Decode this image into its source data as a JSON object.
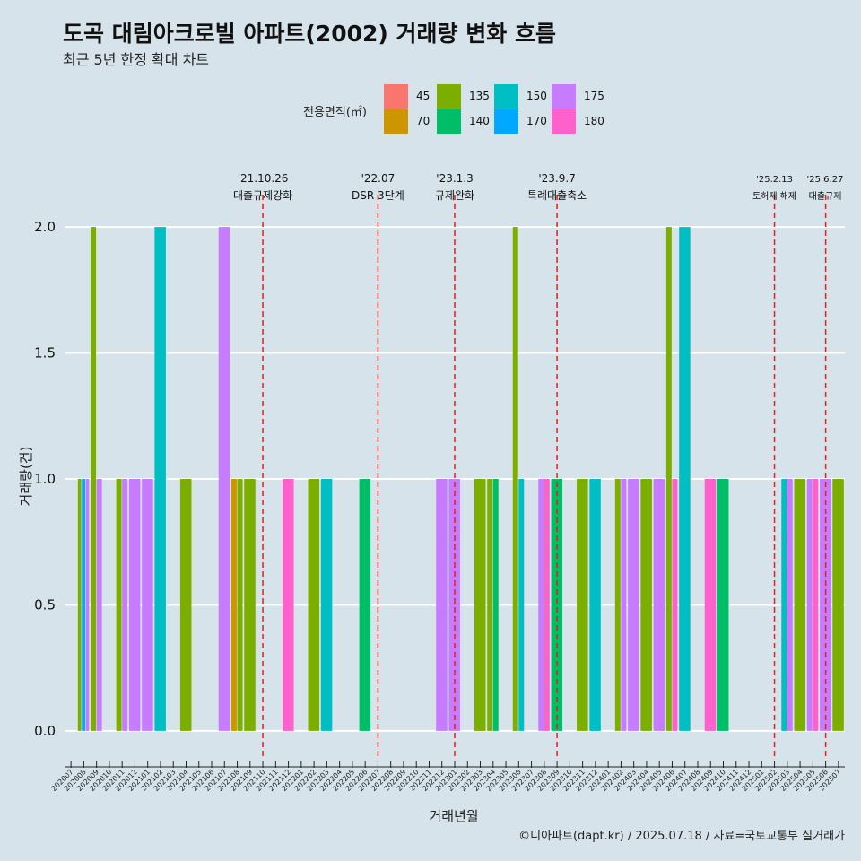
{
  "header": {
    "title": "도곡 대림아크로빌 아파트(2002) 거래량 변화 흐름",
    "subtitle": "최근 5년 한정 확대 차트"
  },
  "legend": {
    "title": "전용면적(㎡)",
    "items": [
      {
        "label": "45",
        "color": "#F8766D"
      },
      {
        "label": "70",
        "color": "#CD9600"
      },
      {
        "label": "135",
        "color": "#7CAE00"
      },
      {
        "label": "140",
        "color": "#00BE67"
      },
      {
        "label": "150",
        "color": "#00BFC4"
      },
      {
        "label": "170",
        "color": "#00A9FF"
      },
      {
        "label": "175",
        "color": "#C77CFF"
      },
      {
        "label": "180",
        "color": "#FF61CC"
      }
    ]
  },
  "caption": "©디아파트(dapt.kr) / 2025.07.18 / 자료=국토교통부 실거래가",
  "chart_data": {
    "type": "bar",
    "xlabel": "거래년월",
    "ylabel": "거래량(건)",
    "ylim": [
      -0.1,
      2.1
    ],
    "yticks": [
      "0.0",
      "0.5",
      "1.0",
      "1.5",
      "2.0"
    ],
    "grid": true,
    "categories": [
      "202007",
      "202008",
      "202009",
      "202010",
      "202011",
      "202012",
      "202101",
      "202102",
      "202103",
      "202104",
      "202105",
      "202106",
      "202107",
      "202108",
      "202109",
      "202110",
      "202111",
      "202112",
      "202201",
      "202202",
      "202203",
      "202204",
      "202205",
      "202206",
      "202207",
      "202208",
      "202209",
      "202210",
      "202211",
      "202212",
      "202301",
      "202302",
      "202303",
      "202304",
      "202305",
      "202306",
      "202307",
      "202308",
      "202309",
      "202310",
      "202311",
      "202312",
      "202401",
      "202402",
      "202403",
      "202404",
      "202405",
      "202406",
      "202407",
      "202408",
      "202409",
      "202410",
      "202411",
      "202412",
      "202501",
      "202502",
      "202503",
      "202504",
      "202505",
      "202506",
      "202507"
    ],
    "bars": [
      {
        "month": "202008",
        "area": "135",
        "count": 1
      },
      {
        "month": "202008",
        "area": "170",
        "count": 1
      },
      {
        "month": "202008",
        "area": "175",
        "count": 1
      },
      {
        "month": "202009",
        "area": "135",
        "count": 2
      },
      {
        "month": "202009",
        "area": "175",
        "count": 1
      },
      {
        "month": "202011",
        "area": "135",
        "count": 1
      },
      {
        "month": "202011",
        "area": "175",
        "count": 1
      },
      {
        "month": "202012",
        "area": "175",
        "count": 1
      },
      {
        "month": "202101",
        "area": "175",
        "count": 1
      },
      {
        "month": "202102",
        "area": "150",
        "count": 2
      },
      {
        "month": "202104",
        "area": "135",
        "count": 1
      },
      {
        "month": "202107",
        "area": "175",
        "count": 2
      },
      {
        "month": "202108",
        "area": "70",
        "count": 1
      },
      {
        "month": "202108",
        "area": "135",
        "count": 1
      },
      {
        "month": "202109",
        "area": "135",
        "count": 1
      },
      {
        "month": "202112",
        "area": "180",
        "count": 1
      },
      {
        "month": "202202",
        "area": "135",
        "count": 1
      },
      {
        "month": "202203",
        "area": "150",
        "count": 1
      },
      {
        "month": "202206",
        "area": "140",
        "count": 1
      },
      {
        "month": "202212",
        "area": "175",
        "count": 1
      },
      {
        "month": "202301",
        "area": "175",
        "count": 1
      },
      {
        "month": "202303",
        "area": "135",
        "count": 1
      },
      {
        "month": "202304",
        "area": "135",
        "count": 1
      },
      {
        "month": "202304",
        "area": "140",
        "count": 1
      },
      {
        "month": "202306",
        "area": "135",
        "count": 2
      },
      {
        "month": "202306",
        "area": "150",
        "count": 1
      },
      {
        "month": "202308",
        "area": "175",
        "count": 1
      },
      {
        "month": "202308",
        "area": "180",
        "count": 1
      },
      {
        "month": "202309",
        "area": "140",
        "count": 1
      },
      {
        "month": "202311",
        "area": "135",
        "count": 1
      },
      {
        "month": "202312",
        "area": "150",
        "count": 1
      },
      {
        "month": "202402",
        "area": "135",
        "count": 1
      },
      {
        "month": "202402",
        "area": "175",
        "count": 1
      },
      {
        "month": "202403",
        "area": "175",
        "count": 1
      },
      {
        "month": "202404",
        "area": "135",
        "count": 1
      },
      {
        "month": "202405",
        "area": "175",
        "count": 1
      },
      {
        "month": "202406",
        "area": "135",
        "count": 2
      },
      {
        "month": "202406",
        "area": "180",
        "count": 1
      },
      {
        "month": "202407",
        "area": "150",
        "count": 2
      },
      {
        "month": "202409",
        "area": "180",
        "count": 1
      },
      {
        "month": "202410",
        "area": "140",
        "count": 1
      },
      {
        "month": "202503",
        "area": "150",
        "count": 1
      },
      {
        "month": "202503",
        "area": "175",
        "count": 1
      },
      {
        "month": "202504",
        "area": "135",
        "count": 1
      },
      {
        "month": "202505",
        "area": "175",
        "count": 1
      },
      {
        "month": "202505",
        "area": "180",
        "count": 1
      },
      {
        "month": "202506",
        "area": "175",
        "count": 1
      },
      {
        "month": "202507",
        "area": "135",
        "count": 1
      }
    ],
    "events": [
      {
        "month": "202110",
        "date": "'21.10.26",
        "label": "대출규제강화"
      },
      {
        "month": "202207",
        "date": "'22.07",
        "label": "DSR 3단계"
      },
      {
        "month": "202301",
        "date": "'23.1.3",
        "label": "규제완화"
      },
      {
        "month": "202309",
        "date": "'23.9.7",
        "label": "특례대출축소"
      },
      {
        "month": "202502",
        "date": "'25.2.13",
        "label": "토허제 해제"
      },
      {
        "month": "202506",
        "date": "'25.6.27",
        "label": "대출규제"
      }
    ]
  }
}
